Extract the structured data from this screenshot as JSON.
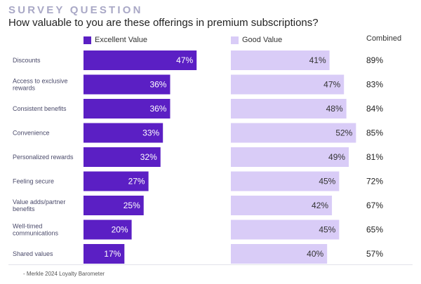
{
  "header": {
    "kicker": "SURVEY QUESTION",
    "question": "How valuable to you are these offerings in premium subscriptions?"
  },
  "legend": {
    "excellent": "Excellent Value",
    "good": "Good Value",
    "combined": "Combined"
  },
  "colors": {
    "excellent": "#5b1fc4",
    "good": "#d9ccf7"
  },
  "source": "- Merkle 2024 Loyalty Barometer",
  "chart_data": {
    "type": "bar",
    "orientation": "horizontal",
    "categories": [
      "Discounts",
      "Access to exclusive rewards",
      "Consistent benefits",
      "Convenience",
      "Personalized rewards",
      "Feeling secure",
      "Value adds/partner benefits",
      "Well-timed communications",
      "Shared values"
    ],
    "category_lines": [
      [
        "Discounts"
      ],
      [
        "Access to exclusive",
        "rewards"
      ],
      [
        "Consistent benefits"
      ],
      [
        "Convenience"
      ],
      [
        "Personalized rewards"
      ],
      [
        "Feeling secure"
      ],
      [
        "Value adds/partner",
        "benefits"
      ],
      [
        "Well-timed",
        "communications"
      ],
      [
        "Shared values"
      ]
    ],
    "series": [
      {
        "name": "Excellent Value",
        "values": [
          47,
          36,
          36,
          33,
          32,
          27,
          25,
          20,
          17
        ]
      },
      {
        "name": "Good Value",
        "values": [
          41,
          47,
          48,
          52,
          49,
          45,
          42,
          45,
          40
        ]
      }
    ],
    "combined": [
      89,
      83,
      84,
      85,
      81,
      72,
      67,
      65,
      57
    ],
    "unit": "%"
  }
}
